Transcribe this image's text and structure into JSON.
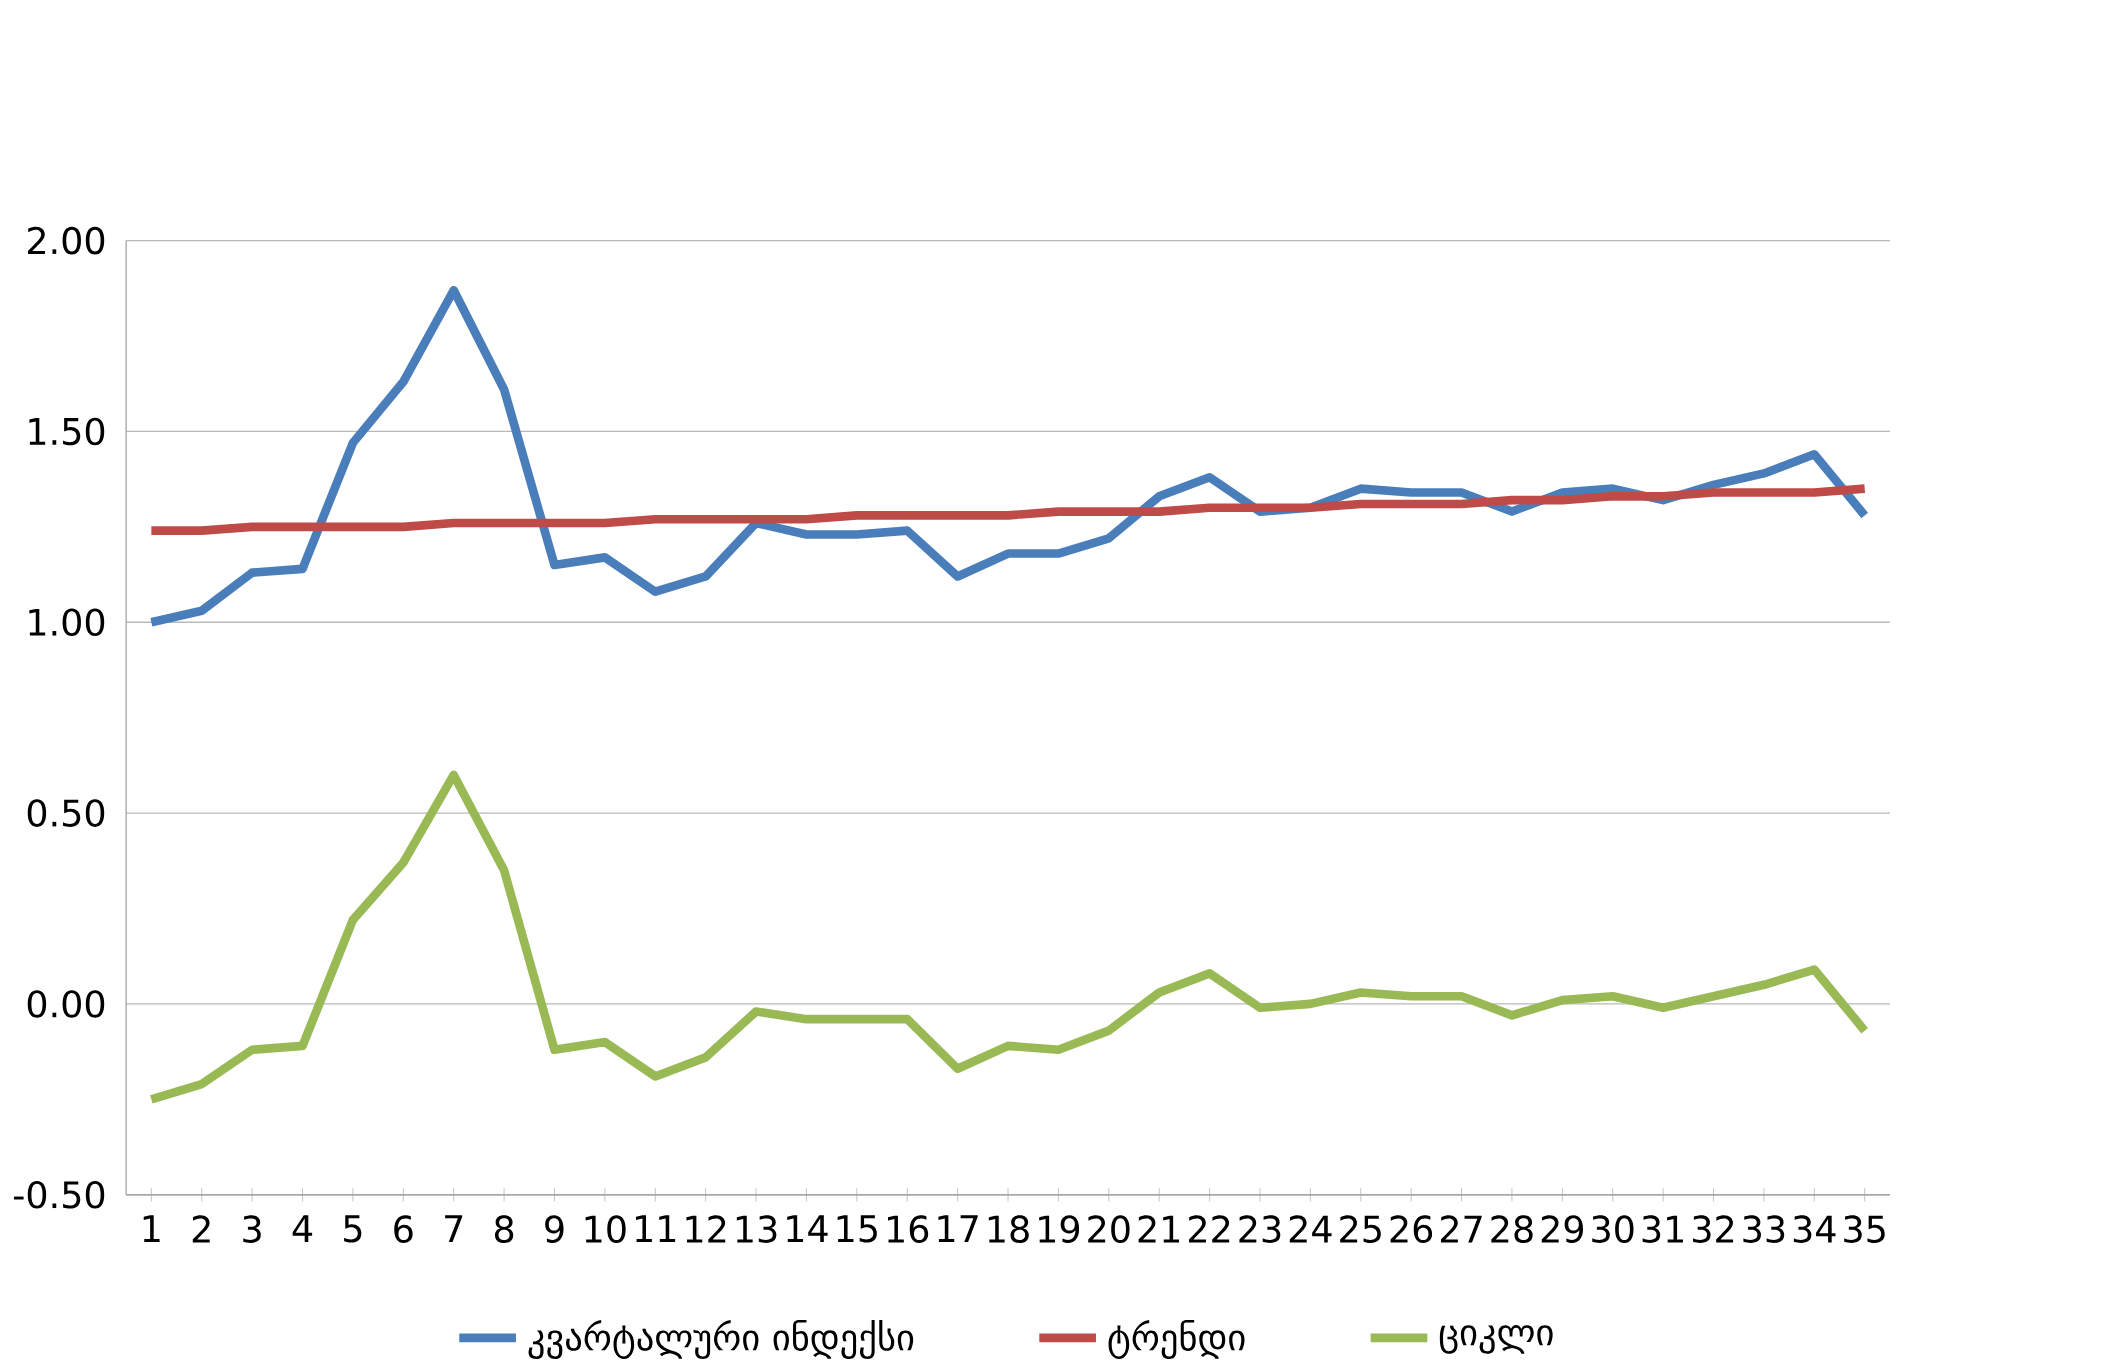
{
  "chart_data": {
    "type": "line",
    "categories": [
      "1",
      "2",
      "3",
      "4",
      "5",
      "6",
      "7",
      "8",
      "9",
      "10",
      "11",
      "12",
      "13",
      "14",
      "15",
      "16",
      "17",
      "18",
      "19",
      "20",
      "21",
      "22",
      "23",
      "24",
      "25",
      "26",
      "27",
      "28",
      "29",
      "30",
      "31",
      "32",
      "33",
      "34",
      "35"
    ],
    "series": [
      {
        "name": "კვარტალური  ინდექსი",
        "color": "#4a7ebb",
        "values": [
          1.0,
          1.03,
          1.13,
          1.14,
          1.47,
          1.63,
          1.87,
          1.61,
          1.15,
          1.17,
          1.08,
          1.12,
          1.26,
          1.23,
          1.23,
          1.24,
          1.12,
          1.18,
          1.18,
          1.22,
          1.33,
          1.38,
          1.29,
          1.3,
          1.35,
          1.34,
          1.34,
          1.29,
          1.34,
          1.35,
          1.32,
          1.36,
          1.39,
          1.44,
          1.28
        ]
      },
      {
        "name": "ტრენდი",
        "color": "#be4b48",
        "values": [
          1.24,
          1.24,
          1.25,
          1.25,
          1.25,
          1.25,
          1.26,
          1.26,
          1.26,
          1.26,
          1.27,
          1.27,
          1.27,
          1.27,
          1.28,
          1.28,
          1.28,
          1.28,
          1.29,
          1.29,
          1.29,
          1.3,
          1.3,
          1.3,
          1.31,
          1.31,
          1.31,
          1.32,
          1.32,
          1.33,
          1.33,
          1.34,
          1.34,
          1.34,
          1.35
        ]
      },
      {
        "name": "ციკლი",
        "color": "#98b954",
        "values": [
          -0.25,
          -0.21,
          -0.12,
          -0.11,
          0.22,
          0.37,
          0.6,
          0.35,
          -0.12,
          -0.1,
          -0.19,
          -0.14,
          -0.02,
          -0.04,
          -0.04,
          -0.04,
          -0.17,
          -0.11,
          -0.12,
          -0.07,
          0.03,
          0.08,
          -0.01,
          0.0,
          0.03,
          0.02,
          0.02,
          -0.03,
          0.01,
          0.02,
          -0.01,
          0.02,
          0.05,
          0.09,
          -0.07
        ]
      }
    ],
    "ylim": [
      -0.5,
      2.0
    ],
    "yticks": [
      {
        "value": -0.5,
        "label": "-0.50"
      },
      {
        "value": 0,
        "label": "0.00"
      },
      {
        "value": 0.5,
        "label": "0.50"
      },
      {
        "value": 1.0,
        "label": "1.00"
      },
      {
        "value": 1.5,
        "label": "1.50"
      },
      {
        "value": 2.0,
        "label": "2.00"
      }
    ],
    "grid": "y",
    "legend": "bottom",
    "marker": "none",
    "line_style": "solid"
  }
}
